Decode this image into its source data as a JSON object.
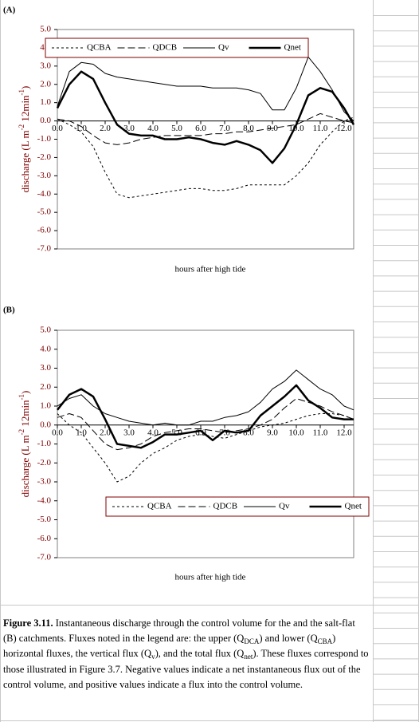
{
  "chart_data": [
    {
      "type": "line",
      "panel": "(A)",
      "xlabel": "hours after high tide",
      "ylabel_parts": [
        "discharge (L m",
        "-2",
        " 12min",
        "-1",
        ")"
      ],
      "legend": "upper left",
      "xlim": [
        0,
        12.4
      ],
      "ylim": [
        -7,
        5
      ],
      "xticks": [
        {
          "value": 0,
          "label": "0.0"
        },
        {
          "value": 1,
          "label": "1.0"
        },
        {
          "value": 2,
          "label": "2.0"
        },
        {
          "value": 3,
          "label": "3.0"
        },
        {
          "value": 4,
          "label": "4.0"
        },
        {
          "value": 5,
          "label": "5.0"
        },
        {
          "value": 6,
          "label": "6.0"
        },
        {
          "value": 7,
          "label": "7.0"
        },
        {
          "value": 8,
          "label": "8.0"
        },
        {
          "value": 9,
          "label": "9.0"
        },
        {
          "value": 10,
          "label": "10.0"
        },
        {
          "value": 11,
          "label": "11.0"
        },
        {
          "value": 12,
          "label": "12.0"
        }
      ],
      "yticks": [
        {
          "value": 5,
          "label": "5.0"
        },
        {
          "value": 4,
          "label": "4.0"
        },
        {
          "value": 3,
          "label": "3.0"
        },
        {
          "value": 2,
          "label": "2.0"
        },
        {
          "value": 1,
          "label": "1.0"
        },
        {
          "value": 0,
          "label": "0.0"
        },
        {
          "value": -1,
          "label": "-1.0"
        },
        {
          "value": -2,
          "label": "-2.0"
        },
        {
          "value": -3,
          "label": "-3.0"
        },
        {
          "value": -4,
          "label": "-4.0"
        },
        {
          "value": -5,
          "label": "-5.0"
        },
        {
          "value": -6,
          "label": "-6.0"
        },
        {
          "value": -7,
          "label": "-7.0"
        }
      ],
      "x": [
        0,
        0.5,
        1,
        1.5,
        2,
        2.5,
        3,
        3.5,
        4,
        4.5,
        5,
        5.5,
        6,
        6.5,
        7,
        7.5,
        8,
        8.5,
        9,
        9.5,
        10,
        10.5,
        11,
        11.5,
        12,
        12.4
      ],
      "series": [
        {
          "name": "QCBA",
          "color": "#000000",
          "line_style": "dotted",
          "linewidth": 1,
          "values": [
            0.1,
            -0.2,
            -0.6,
            -1.4,
            -2.8,
            -4.0,
            -4.2,
            -4.1,
            -4.0,
            -3.9,
            -3.8,
            -3.7,
            -3.7,
            -3.8,
            -3.8,
            -3.7,
            -3.5,
            -3.5,
            -3.5,
            -3.5,
            -3.0,
            -2.3,
            -1.3,
            -0.6,
            0.0,
            0.2
          ]
        },
        {
          "name": "QDCB",
          "color": "#000000",
          "line_style": "dashed",
          "linewidth": 1,
          "values": [
            0.1,
            0.0,
            -0.3,
            -0.8,
            -1.2,
            -1.3,
            -1.2,
            -1.0,
            -0.9,
            -0.8,
            -0.8,
            -0.8,
            -0.8,
            -0.7,
            -0.7,
            -0.6,
            -0.6,
            -0.5,
            -0.4,
            -0.3,
            -0.2,
            0.1,
            0.4,
            0.2,
            0.0,
            -0.1
          ]
        },
        {
          "name": "Qv",
          "color": "#000000",
          "line_style": "solid",
          "linewidth": 1,
          "values": [
            0.8,
            2.7,
            3.2,
            3.1,
            2.6,
            2.4,
            2.3,
            2.2,
            2.1,
            2.0,
            1.9,
            1.9,
            1.9,
            1.8,
            1.8,
            1.8,
            1.7,
            1.5,
            0.6,
            0.6,
            1.8,
            3.5,
            2.7,
            1.7,
            0.5,
            0.0
          ]
        },
        {
          "name": "Qnet",
          "color": "#000000",
          "line_style": "solid",
          "linewidth": 2.5,
          "values": [
            0.7,
            2.0,
            2.7,
            2.3,
            1.0,
            -0.2,
            -0.7,
            -0.8,
            -0.8,
            -1.0,
            -1.0,
            -0.9,
            -1.0,
            -1.2,
            -1.3,
            -1.1,
            -1.3,
            -1.6,
            -2.3,
            -1.5,
            -0.2,
            1.4,
            1.8,
            1.6,
            0.7,
            -0.2
          ]
        }
      ]
    },
    {
      "type": "line",
      "panel": "(B)",
      "xlabel": "hours after high tide",
      "ylabel_parts": [
        "discharge (L m",
        "-2",
        " 12min",
        "-1",
        ")"
      ],
      "legend": "lower right",
      "xlim": [
        0,
        12.4
      ],
      "ylim": [
        -7,
        5
      ],
      "xticks": [
        {
          "value": 0,
          "label": "0.0"
        },
        {
          "value": 1,
          "label": "1.0"
        },
        {
          "value": 2,
          "label": "2.0"
        },
        {
          "value": 3,
          "label": "3.0"
        },
        {
          "value": 4,
          "label": "4.0"
        },
        {
          "value": 5,
          "label": "5.0"
        },
        {
          "value": 6,
          "label": "6.0"
        },
        {
          "value": 7,
          "label": "7.0"
        },
        {
          "value": 8,
          "label": "8.0"
        },
        {
          "value": 9,
          "label": "9.0"
        },
        {
          "value": 10,
          "label": "10.0"
        },
        {
          "value": 11,
          "label": "11.0"
        },
        {
          "value": 12,
          "label": "12.0"
        }
      ],
      "yticks": [
        {
          "value": 5,
          "label": "5.0"
        },
        {
          "value": 4,
          "label": "4.0"
        },
        {
          "value": 3,
          "label": "3.0"
        },
        {
          "value": 2,
          "label": "2.0"
        },
        {
          "value": 1,
          "label": "1.0"
        },
        {
          "value": 0,
          "label": "0.0"
        },
        {
          "value": -1,
          "label": "-1.0"
        },
        {
          "value": -2,
          "label": "-2.0"
        },
        {
          "value": -3,
          "label": "-3.0"
        },
        {
          "value": -4,
          "label": "-4.0"
        },
        {
          "value": -5,
          "label": "-5.0"
        },
        {
          "value": -6,
          "label": "-6.0"
        },
        {
          "value": -7,
          "label": "-7.0"
        }
      ],
      "x": [
        0,
        0.5,
        1,
        1.5,
        2,
        2.5,
        3,
        3.5,
        4,
        4.5,
        5,
        5.5,
        6,
        6.5,
        7,
        7.5,
        8,
        8.5,
        9,
        9.5,
        10,
        10.5,
        11,
        11.5,
        12,
        12.4
      ],
      "series": [
        {
          "name": "QCBA",
          "color": "#000000",
          "line_style": "dotted",
          "linewidth": 1,
          "values": [
            0.6,
            0.0,
            -0.4,
            -1.2,
            -2.0,
            -3.0,
            -2.7,
            -2.0,
            -1.5,
            -1.2,
            -0.8,
            -0.6,
            -0.5,
            -0.6,
            -0.7,
            -0.5,
            -0.3,
            -0.1,
            0.0,
            0.1,
            0.3,
            0.5,
            0.6,
            0.6,
            0.5,
            0.3
          ]
        },
        {
          "name": "QDCB",
          "color": "#000000",
          "line_style": "dashed",
          "linewidth": 1,
          "values": [
            0.4,
            0.6,
            0.4,
            -0.3,
            -1.0,
            -1.3,
            -1.2,
            -1.0,
            -0.6,
            -0.4,
            -0.3,
            -0.2,
            -0.2,
            -0.3,
            -0.4,
            -0.3,
            -0.2,
            0.0,
            0.3,
            0.9,
            1.4,
            1.2,
            1.0,
            0.7,
            0.5,
            0.3
          ]
        },
        {
          "name": "Qv",
          "color": "#000000",
          "line_style": "solid",
          "linewidth": 1,
          "values": [
            1.0,
            1.4,
            1.6,
            1.0,
            0.6,
            0.4,
            0.2,
            0.1,
            0.0,
            0.1,
            0.0,
            0.0,
            0.2,
            0.2,
            0.4,
            0.5,
            0.7,
            1.2,
            1.9,
            2.3,
            2.9,
            2.4,
            1.9,
            1.6,
            1.0,
            0.8
          ]
        },
        {
          "name": "Qnet",
          "color": "#000000",
          "line_style": "solid",
          "linewidth": 2.5,
          "values": [
            0.8,
            1.6,
            1.9,
            1.5,
            0.3,
            -1.0,
            -1.1,
            -1.2,
            -0.9,
            -0.5,
            -0.5,
            -0.4,
            -0.3,
            -0.8,
            -0.3,
            -0.4,
            -0.3,
            0.5,
            1.0,
            1.5,
            2.1,
            1.3,
            0.9,
            0.4,
            0.3,
            0.3
          ]
        }
      ]
    }
  ],
  "caption": {
    "parts": [
      "Figure 3.11.",
      "  Instantaneous discharge through the control volume for the and the salt-flat (B) catchments.  Fluxes noted in the legend are:  the upper (Q",
      "DCA",
      ") and lower (Q",
      "CBA",
      ") horizontal fluxes, the vertical flux (Q",
      "v",
      "), and the total flux (Q",
      "net",
      ").  These fluxes correspond to those illustrated in Figure 3.7.  Negative values indicate a net instantaneous flux out of the control volume, and positive values indicate a flux into the control volume."
    ]
  }
}
